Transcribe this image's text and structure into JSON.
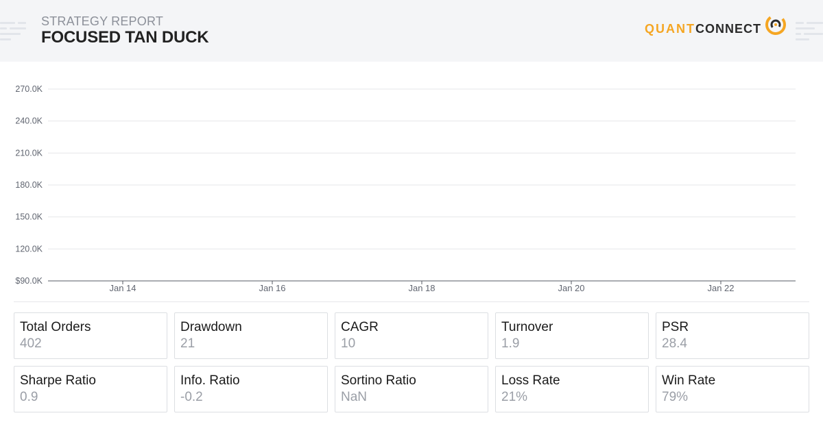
{
  "header": {
    "label": "STRATEGY REPORT",
    "title": "FOCUSED TAN DUCK",
    "logo_quant": "QUANT",
    "logo_connect": "CONNECT"
  },
  "colors": {
    "header_bg": "#f4f5f7",
    "brand_orange": "#f5a623",
    "brand_dark": "#2b2b2b"
  },
  "chart_data": {
    "type": "line",
    "title": "",
    "xlabel": "",
    "ylabel": "",
    "yticks": [
      "$90.0K",
      "120.0K",
      "150.0K",
      "180.0K",
      "210.0K",
      "240.0K",
      "270.0K"
    ],
    "ytick_values": [
      90000,
      120000,
      150000,
      180000,
      210000,
      240000,
      270000
    ],
    "xticks": [
      "Jan 14",
      "Jan 16",
      "Jan 18",
      "Jan 20",
      "Jan 22"
    ],
    "ylim": [
      90000,
      270000
    ],
    "grid": true,
    "series": []
  },
  "stats": [
    {
      "label": "Total Orders",
      "value": "402"
    },
    {
      "label": "Drawdown",
      "value": "21"
    },
    {
      "label": "CAGR",
      "value": "10"
    },
    {
      "label": "Turnover",
      "value": "1.9"
    },
    {
      "label": "PSR",
      "value": "28.4"
    },
    {
      "label": "Sharpe Ratio",
      "value": "0.9"
    },
    {
      "label": "Info. Ratio",
      "value": "-0.2"
    },
    {
      "label": "Sortino Ratio",
      "value": "NaN"
    },
    {
      "label": "Loss Rate",
      "value": "21%"
    },
    {
      "label": "Win Rate",
      "value": "79%"
    }
  ]
}
